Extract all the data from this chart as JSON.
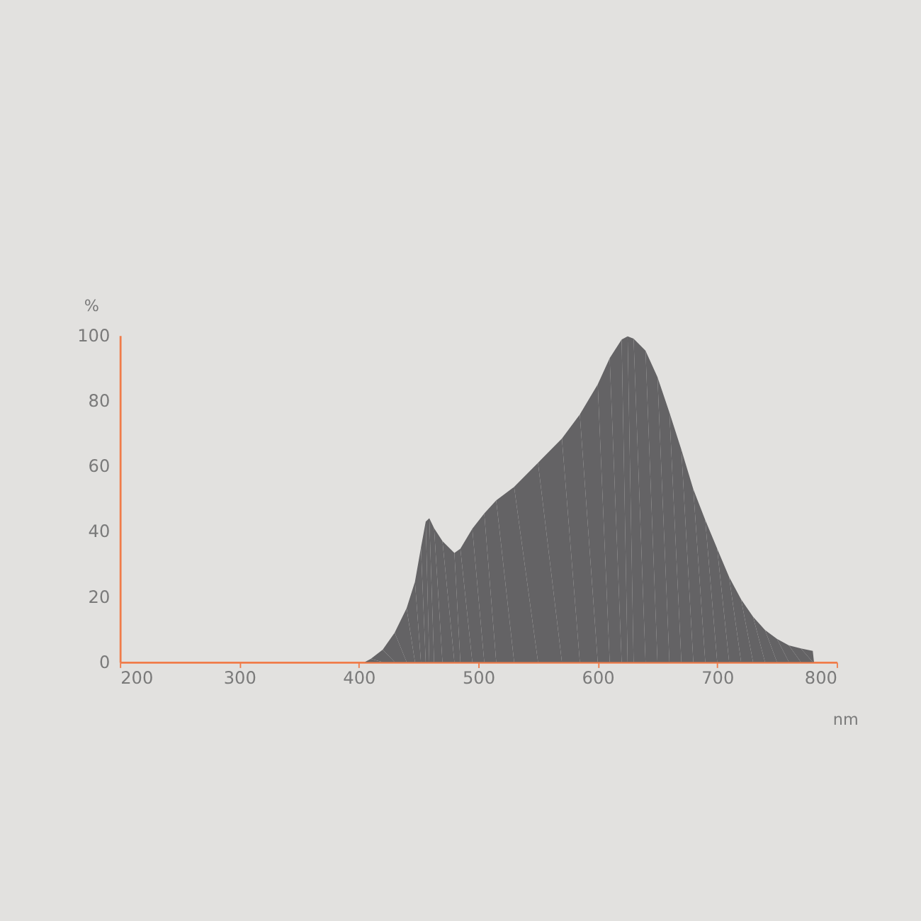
{
  "chart_data": {
    "type": "area",
    "xlabel": "nm",
    "ylabel": "%",
    "xlim": [
      200,
      800
    ],
    "ylim": [
      0,
      100
    ],
    "xticks": [
      200,
      300,
      400,
      500,
      600,
      700,
      800
    ],
    "yticks": [
      0,
      20,
      40,
      60,
      80,
      100
    ],
    "grid": false,
    "x": [
      380,
      405,
      410,
      420,
      430,
      440,
      447,
      452,
      456,
      459,
      463,
      470,
      480,
      485,
      495,
      505,
      515,
      530,
      550,
      570,
      585,
      600,
      610,
      620,
      625,
      630,
      640,
      650,
      660,
      670,
      680,
      690,
      700,
      710,
      720,
      730,
      740,
      750,
      760,
      770,
      780,
      781
    ],
    "series": [
      {
        "color": "#646365",
        "values": [
          0,
          0,
          1,
          3.8,
          9,
          16.5,
          24.6,
          35,
          43,
          44,
          41,
          37,
          33.4,
          34.7,
          40.8,
          45.5,
          49.5,
          53.6,
          61,
          68.4,
          75.8,
          85,
          93,
          98.7,
          99.7,
          99,
          95.3,
          87.2,
          76.4,
          65,
          52.9,
          43.5,
          34.7,
          26,
          19.2,
          13.9,
          9.8,
          7.1,
          5.1,
          4.2,
          3.4,
          0
        ]
      }
    ]
  }
}
